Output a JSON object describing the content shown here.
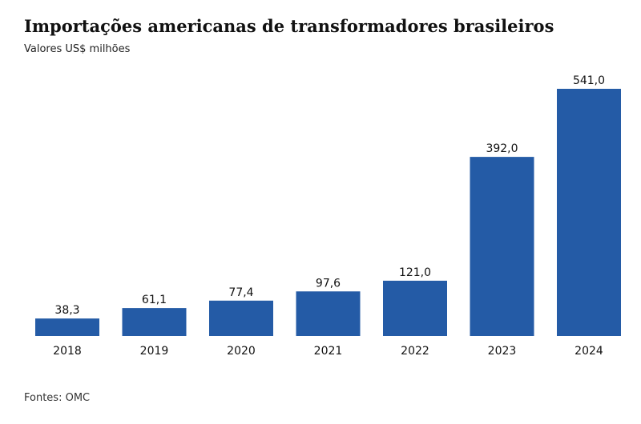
{
  "chart_data": {
    "type": "bar",
    "title": "Importações americanas de transformadores brasileiros",
    "subtitle": "Valores US$ milhões",
    "categories": [
      "2018",
      "2019",
      "2020",
      "2021",
      "2022",
      "2023",
      "2024"
    ],
    "values": [
      38.3,
      61.1,
      77.4,
      97.6,
      121.0,
      392.0,
      541.0
    ],
    "value_labels": [
      "38,3",
      "61,1",
      "77,4",
      "97,6",
      "121,0",
      "392,0",
      "541,0"
    ],
    "ylim": [
      0,
      541
    ],
    "grid": false,
    "bar_color": "#245ba6",
    "source": "Fontes: OMC"
  }
}
